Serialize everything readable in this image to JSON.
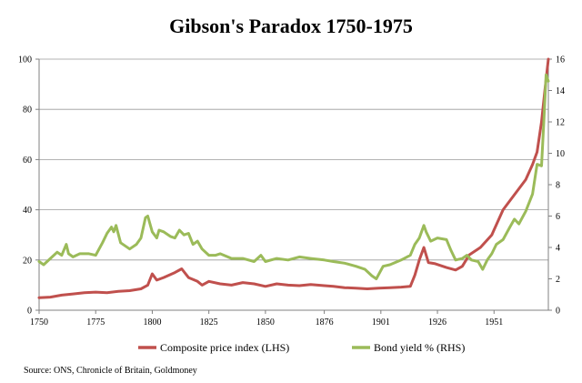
{
  "chart_data": {
    "type": "line",
    "title": "Gibson's Paradox 1750-1975",
    "source": "Source: ONS, Chronicle of Britain, Goldmoney",
    "x_ticks": [
      "1750",
      "1775",
      "1800",
      "1825",
      "1850",
      "1876",
      "1901",
      "1926",
      "1951"
    ],
    "y_left_ticks": [
      "0",
      "20",
      "40",
      "60",
      "80",
      "100"
    ],
    "y_right_ticks": [
      "0",
      "2",
      "4",
      "6",
      "8",
      "10",
      "12",
      "14",
      "16"
    ],
    "xlim": [
      1750,
      1975
    ],
    "ylim_left": [
      0,
      100
    ],
    "ylim_right": [
      0,
      16
    ],
    "grid": "horizontal",
    "legend_position": "bottom",
    "series": [
      {
        "name": "Composite price index (LHS)",
        "axis": "left",
        "color": "#c0504d",
        "points": [
          [
            1750,
            5.0
          ],
          [
            1755,
            5.2
          ],
          [
            1760,
            6.0
          ],
          [
            1765,
            6.5
          ],
          [
            1770,
            7.0
          ],
          [
            1775,
            7.2
          ],
          [
            1780,
            7.0
          ],
          [
            1785,
            7.5
          ],
          [
            1790,
            7.8
          ],
          [
            1795,
            8.5
          ],
          [
            1798,
            10.0
          ],
          [
            1800,
            14.5
          ],
          [
            1802,
            12.0
          ],
          [
            1805,
            13.0
          ],
          [
            1810,
            15.0
          ],
          [
            1813,
            16.5
          ],
          [
            1816,
            13.0
          ],
          [
            1820,
            11.5
          ],
          [
            1822,
            10.0
          ],
          [
            1825,
            11.5
          ],
          [
            1830,
            10.5
          ],
          [
            1835,
            10.0
          ],
          [
            1840,
            11.0
          ],
          [
            1845,
            10.5
          ],
          [
            1850,
            9.5
          ],
          [
            1855,
            10.5
          ],
          [
            1860,
            10.0
          ],
          [
            1865,
            9.8
          ],
          [
            1870,
            10.2
          ],
          [
            1876,
            9.8
          ],
          [
            1880,
            9.5
          ],
          [
            1885,
            9.0
          ],
          [
            1890,
            8.8
          ],
          [
            1895,
            8.5
          ],
          [
            1900,
            8.8
          ],
          [
            1905,
            9.0
          ],
          [
            1910,
            9.2
          ],
          [
            1914,
            9.5
          ],
          [
            1916,
            14.0
          ],
          [
            1918,
            20.0
          ],
          [
            1920,
            25.0
          ],
          [
            1922,
            19.0
          ],
          [
            1925,
            18.5
          ],
          [
            1930,
            17.0
          ],
          [
            1934,
            16.0
          ],
          [
            1937,
            17.5
          ],
          [
            1940,
            22.0
          ],
          [
            1945,
            25.0
          ],
          [
            1950,
            30.0
          ],
          [
            1955,
            40.0
          ],
          [
            1960,
            46.0
          ],
          [
            1965,
            52.0
          ],
          [
            1968,
            58.0
          ],
          [
            1970,
            63.0
          ],
          [
            1972,
            75.0
          ],
          [
            1973.5,
            88.0
          ],
          [
            1975,
            100.0
          ]
        ]
      },
      {
        "name": "Bond yield % (RHS)",
        "axis": "right",
        "color": "#9bbb59",
        "points": [
          [
            1750,
            3.1
          ],
          [
            1752,
            2.9
          ],
          [
            1755,
            3.3
          ],
          [
            1758,
            3.7
          ],
          [
            1760,
            3.5
          ],
          [
            1762,
            4.2
          ],
          [
            1763,
            3.6
          ],
          [
            1765,
            3.4
          ],
          [
            1768,
            3.6
          ],
          [
            1772,
            3.6
          ],
          [
            1775,
            3.5
          ],
          [
            1778,
            4.3
          ],
          [
            1780,
            4.9
          ],
          [
            1782,
            5.3
          ],
          [
            1783,
            5.0
          ],
          [
            1784,
            5.4
          ],
          [
            1786,
            4.3
          ],
          [
            1790,
            3.9
          ],
          [
            1793,
            4.2
          ],
          [
            1795,
            4.6
          ],
          [
            1797,
            5.9
          ],
          [
            1798,
            6.0
          ],
          [
            1800,
            5.0
          ],
          [
            1802,
            4.6
          ],
          [
            1803,
            5.1
          ],
          [
            1805,
            5.0
          ],
          [
            1808,
            4.7
          ],
          [
            1810,
            4.6
          ],
          [
            1812,
            5.1
          ],
          [
            1814,
            4.8
          ],
          [
            1816,
            4.9
          ],
          [
            1818,
            4.2
          ],
          [
            1820,
            4.4
          ],
          [
            1822,
            3.9
          ],
          [
            1825,
            3.5
          ],
          [
            1828,
            3.5
          ],
          [
            1830,
            3.6
          ],
          [
            1835,
            3.3
          ],
          [
            1840,
            3.3
          ],
          [
            1845,
            3.1
          ],
          [
            1848,
            3.5
          ],
          [
            1850,
            3.1
          ],
          [
            1855,
            3.3
          ],
          [
            1860,
            3.2
          ],
          [
            1865,
            3.4
          ],
          [
            1870,
            3.3
          ],
          [
            1876,
            3.2
          ],
          [
            1880,
            3.1
          ],
          [
            1885,
            3.0
          ],
          [
            1890,
            2.8
          ],
          [
            1894,
            2.6
          ],
          [
            1897,
            2.2
          ],
          [
            1899,
            2.0
          ],
          [
            1902,
            2.8
          ],
          [
            1905,
            2.9
          ],
          [
            1910,
            3.2
          ],
          [
            1914,
            3.5
          ],
          [
            1916,
            4.2
          ],
          [
            1918,
            4.6
          ],
          [
            1920,
            5.4
          ],
          [
            1921,
            5.0
          ],
          [
            1923,
            4.4
          ],
          [
            1926,
            4.6
          ],
          [
            1930,
            4.5
          ],
          [
            1932,
            3.8
          ],
          [
            1934,
            3.2
          ],
          [
            1937,
            3.3
          ],
          [
            1939,
            3.5
          ],
          [
            1941,
            3.2
          ],
          [
            1944,
            3.1
          ],
          [
            1946,
            2.6
          ],
          [
            1948,
            3.2
          ],
          [
            1950,
            3.6
          ],
          [
            1952,
            4.2
          ],
          [
            1955,
            4.5
          ],
          [
            1958,
            5.3
          ],
          [
            1960,
            5.8
          ],
          [
            1962,
            5.5
          ],
          [
            1965,
            6.3
          ],
          [
            1968,
            7.4
          ],
          [
            1970,
            9.3
          ],
          [
            1972,
            9.2
          ],
          [
            1973,
            12.0
          ],
          [
            1974,
            15.0
          ],
          [
            1975,
            14.6
          ]
        ]
      }
    ]
  }
}
